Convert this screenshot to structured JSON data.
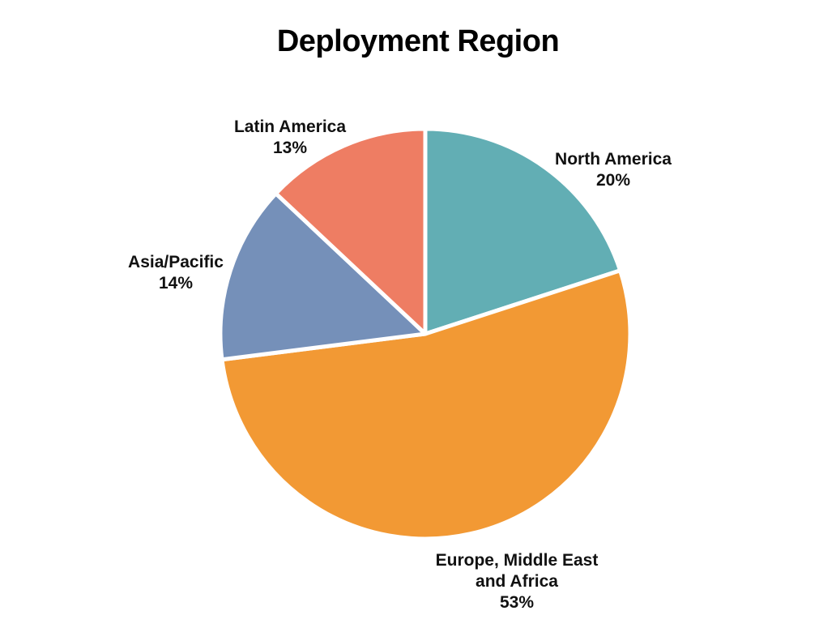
{
  "chart_data": {
    "type": "pie",
    "title": "Deployment Region",
    "categories": [
      "North America",
      "Europe, Middle East and Africa",
      "Asia/Pacific",
      "Latin America"
    ],
    "values": [
      20,
      53,
      14,
      13
    ],
    "unit": "%",
    "labels": [
      {
        "lines": [
          "North America",
          "20%"
        ]
      },
      {
        "lines": [
          "Europe, Middle East",
          "and Africa",
          "53%"
        ]
      },
      {
        "lines": [
          "Asia/Pacific",
          "14%"
        ]
      },
      {
        "lines": [
          "Latin America",
          "13%"
        ]
      }
    ],
    "colors": [
      "#62aeb4",
      "#f29934",
      "#7590b9",
      "#ee7d63"
    ],
    "start_angle": "12 o'clock",
    "direction": "clockwise",
    "legend": "none"
  }
}
